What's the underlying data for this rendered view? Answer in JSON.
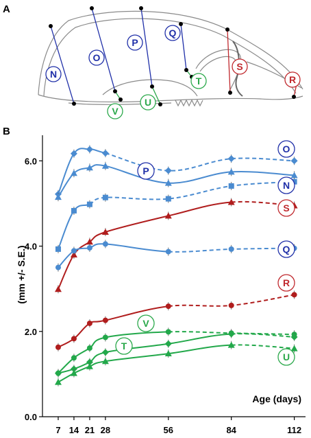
{
  "panel_a": {
    "letter": "A",
    "labels": [
      {
        "text": "N",
        "color": "#1f2fa8"
      },
      {
        "text": "O",
        "color": "#1f2fa8"
      },
      {
        "text": "P",
        "color": "#1f2fa8"
      },
      {
        "text": "Q",
        "color": "#1f2fa8"
      },
      {
        "text": "S",
        "color": "#c0282d"
      },
      {
        "text": "R",
        "color": "#c0282d"
      },
      {
        "text": "T",
        "color": "#2aa84a"
      },
      {
        "text": "U",
        "color": "#2aa84a"
      },
      {
        "text": "V",
        "color": "#2aa84a"
      }
    ]
  },
  "panel_b": {
    "letter": "B"
  },
  "chart_data": {
    "type": "line",
    "xlabel": "Age (days)",
    "ylabel": "(mm +/- S.E.)",
    "x": [
      7,
      14,
      21,
      28,
      56,
      84,
      112
    ],
    "xticks": [
      "7",
      "14",
      "21",
      "28",
      "56",
      "84",
      "112"
    ],
    "yticks": [
      "0.0",
      "2.0",
      "4.0",
      "6.0"
    ],
    "ylim": [
      0,
      6.6
    ],
    "grid": false,
    "series": [
      {
        "name": "O",
        "color": "#4a8bd0",
        "label_color": "#1f2fa8",
        "marker": "diamond",
        "values": [
          5.22,
          6.17,
          6.27,
          6.18,
          5.77,
          6.05,
          6.0
        ],
        "dashed_from": 3
      },
      {
        "name": "P",
        "color": "#4a8bd0",
        "label_color": "#1f2fa8",
        "marker": "triangle",
        "values": [
          5.15,
          5.71,
          5.84,
          5.88,
          5.48,
          5.74,
          5.66
        ],
        "dashed_from": 99
      },
      {
        "name": "N",
        "color": "#4a8bd0",
        "label_color": "#1f2fa8",
        "marker": "square",
        "values": [
          3.93,
          4.83,
          4.98,
          5.14,
          5.11,
          5.41,
          5.51
        ],
        "dashed_from": 2
      },
      {
        "name": "S",
        "color": "#b01d1d",
        "label_color": "#c0282d",
        "marker": "triangle",
        "values": [
          2.99,
          3.8,
          4.1,
          4.33,
          4.71,
          5.03,
          4.95
        ],
        "dashed_from": 5
      },
      {
        "name": "Q",
        "color": "#4a8bd0",
        "label_color": "#1f2fa8",
        "marker": "circle",
        "values": [
          3.5,
          3.89,
          3.96,
          4.05,
          3.87,
          3.93,
          3.95
        ],
        "dashed_from": 4
      },
      {
        "name": "R",
        "color": "#b01d1d",
        "label_color": "#c0282d",
        "marker": "circle",
        "values": [
          1.63,
          1.83,
          2.19,
          2.26,
          2.59,
          2.61,
          2.86
        ],
        "dashed_from": 4
      },
      {
        "name": "V",
        "color": "#22a84a",
        "label_color": "#2aa84a",
        "marker": "circle",
        "values": [
          1.02,
          1.38,
          1.61,
          1.86,
          1.99,
          1.96,
          1.93
        ],
        "dashed_from": 4
      },
      {
        "name": "T",
        "color": "#22a84a",
        "label_color": "#2aa84a",
        "marker": "diamond",
        "values": [
          1.02,
          1.12,
          1.28,
          1.51,
          1.71,
          1.94,
          1.87
        ],
        "dashed_from": 5
      },
      {
        "name": "U",
        "color": "#22a84a",
        "label_color": "#2aa84a",
        "marker": "triangle",
        "values": [
          0.81,
          1.02,
          1.18,
          1.3,
          1.48,
          1.68,
          1.6
        ],
        "dashed_from": 5
      }
    ]
  }
}
